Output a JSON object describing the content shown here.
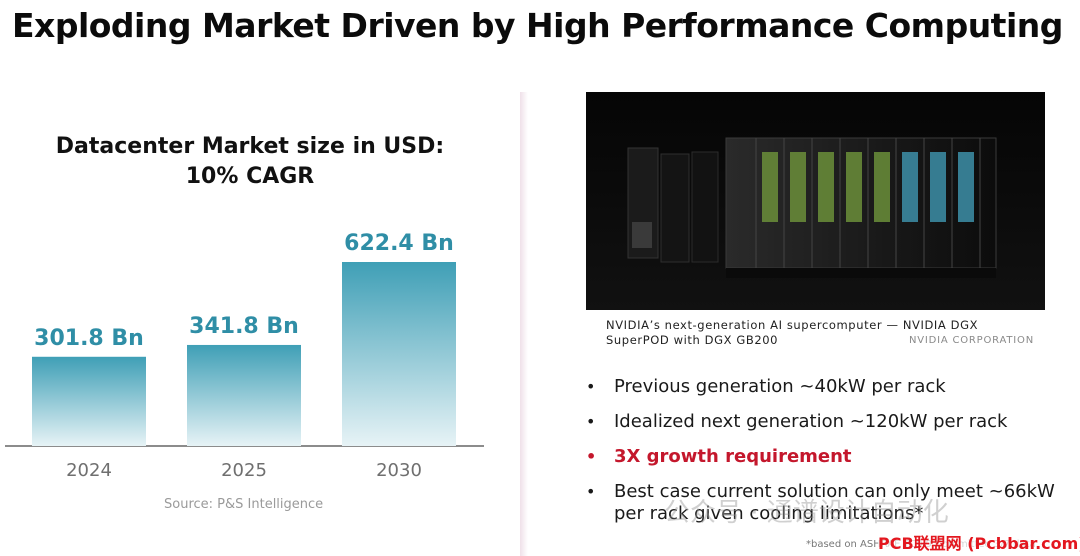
{
  "title": "Exploding Market Driven by High Performance Computing",
  "chart_title_line1": "Datacenter Market size in USD:",
  "chart_title_line2": "10% CAGR",
  "chart_data": {
    "type": "bar",
    "categories": [
      "2024",
      "2025",
      "2030"
    ],
    "values": [
      301.8,
      341.8,
      622.4
    ],
    "value_labels": [
      "301.8 Bn",
      "341.8 Bn",
      "622.4 Bn"
    ],
    "title": "Datacenter Market size in USD: 10% CAGR",
    "xlabel": "",
    "ylabel": "",
    "ylim": [
      0,
      700
    ],
    "grid": false,
    "bar_color_top": "#3f9fb6",
    "bar_color_bottom": "#e7f3f6",
    "label_color": "#2f8ea6"
  },
  "source": "Source: P&S Intelligence",
  "photo": {
    "caption_line1": "NVIDIA’s next-generation AI supercomputer — NVIDIA DGX",
    "caption_line2": "SuperPOD with DGX GB200",
    "credit": "NVIDIA CORPORATION"
  },
  "bullets": [
    {
      "text": "Previous generation ~40kW per rack",
      "emphasis": false
    },
    {
      "text": "Idealized next generation ~120kW per rack",
      "emphasis": false
    },
    {
      "text": "3X growth requirement",
      "emphasis": true
    },
    {
      "text": "Best case current solution can only meet ~66kW per rack given cooling limitations*",
      "emphasis": false
    }
  ],
  "footnote": "*based on ASHRAE TC9.9 Committee 3/7 data",
  "watermark": "公众号 · 通谱设计自动化",
  "watermark_badge": "PCB联盟网 (Pcbbar.com)",
  "colors": {
    "accent_red": "#c4172c",
    "bar_label": "#2f8ea6"
  }
}
